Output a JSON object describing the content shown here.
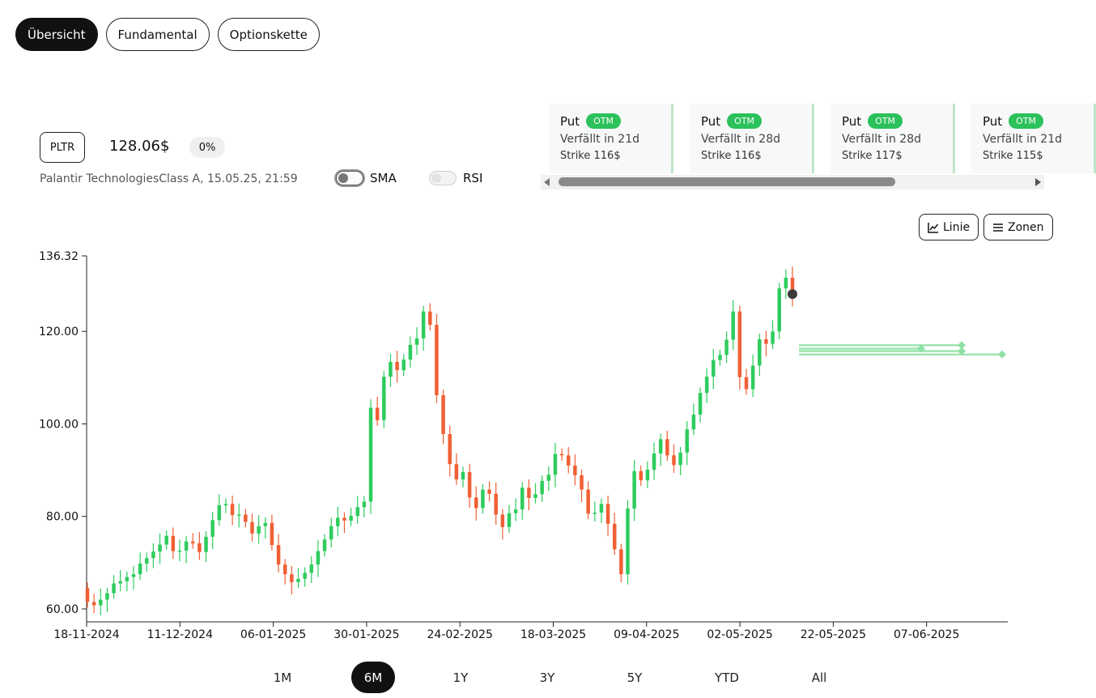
{
  "tabs": [
    {
      "label": "Übersicht",
      "active": true
    },
    {
      "label": "Fundamental",
      "active": false
    },
    {
      "label": "Optionskette",
      "active": false
    }
  ],
  "stock": {
    "ticker": "PLTR",
    "price": "128.06$",
    "change": "0%",
    "description": "Palantir TechnologiesClass A, 15.05.25, 21:59"
  },
  "indicators": {
    "sma_label": "SMA",
    "rsi_label": "RSI"
  },
  "options": [
    {
      "type": "Put",
      "status": "OTM",
      "expiry": "Verfällt in 21d",
      "strike": "Strike 116$"
    },
    {
      "type": "Put",
      "status": "OTM",
      "expiry": "Verfällt in 28d",
      "strike": "Strike 116$"
    },
    {
      "type": "Put",
      "status": "OTM",
      "expiry": "Verfällt in 28d",
      "strike": "Strike 117$"
    },
    {
      "type": "Put",
      "status": "OTM",
      "expiry": "Verfällt in 21d",
      "strike": "Strike 115$"
    }
  ],
  "chart_controls": {
    "line_label": "Linie",
    "zones_label": "Zonen"
  },
  "ranges": [
    {
      "label": "1M",
      "active": false
    },
    {
      "label": "6M",
      "active": true
    },
    {
      "label": "1Y",
      "active": false
    },
    {
      "label": "3Y",
      "active": false
    },
    {
      "label": "5Y",
      "active": false
    },
    {
      "label": "YTD",
      "active": false
    },
    {
      "label": "All",
      "active": false
    }
  ],
  "colors": {
    "up": "#2ecc5e",
    "down": "#f06034",
    "zone": "#8fe0a4"
  },
  "chart_data": {
    "type": "candlestick",
    "ylim": [
      60.0,
      136.32
    ],
    "y_ticks": [
      "136.32",
      "120.00",
      "100.00",
      "80.00",
      "60.00"
    ],
    "x_ticks": [
      "18-11-2024",
      "11-12-2024",
      "06-01-2025",
      "30-01-2025",
      "24-02-2025",
      "18-03-2025",
      "09-04-2025",
      "02-05-2025",
      "22-05-2025",
      "07-06-2025"
    ],
    "closes": [
      61.5,
      60.8,
      62.0,
      63.4,
      65.5,
      66.0,
      66.9,
      67.5,
      69.8,
      71.0,
      72.4,
      73.9,
      75.8,
      72.5,
      72.6,
      74.6,
      74.2,
      72.3,
      75.6,
      79.2,
      82.4,
      82.7,
      80.3,
      80.4,
      78.8,
      76.3,
      77.9,
      78.6,
      73.8,
      69.6,
      67.5,
      65.8,
      66.5,
      67.8,
      69.6,
      72.5,
      75.0,
      77.9,
      79.7,
      79.1,
      80.1,
      82.0,
      83.2,
      103.5,
      100.8,
      110.2,
      113.4,
      111.6,
      113.9,
      117.1,
      118.5,
      124.3,
      121.4,
      106.2,
      97.8,
      91.3,
      88.0,
      89.6,
      84.1,
      81.8,
      85.8,
      84.9,
      80.4,
      77.7,
      80.7,
      81.5,
      86.2,
      84.0,
      84.8,
      87.7,
      89.0,
      93.5,
      93.2,
      91.0,
      88.9,
      85.8,
      80.6,
      80.8,
      82.7,
      78.4,
      72.9,
      67.5,
      81.7,
      89.8,
      87.8,
      90.1,
      93.6,
      96.7,
      93.2,
      91.1,
      93.8,
      98.8,
      102.0,
      106.7,
      110.2,
      113.8,
      114.9,
      118.2,
      124.3,
      110.1,
      107.5,
      112.6,
      118.3,
      117.3,
      120.0,
      129.3,
      131.6,
      128.1
    ],
    "last_price": 128.06,
    "zones": [
      116.0,
      116.0,
      117.0,
      115.0
    ]
  }
}
